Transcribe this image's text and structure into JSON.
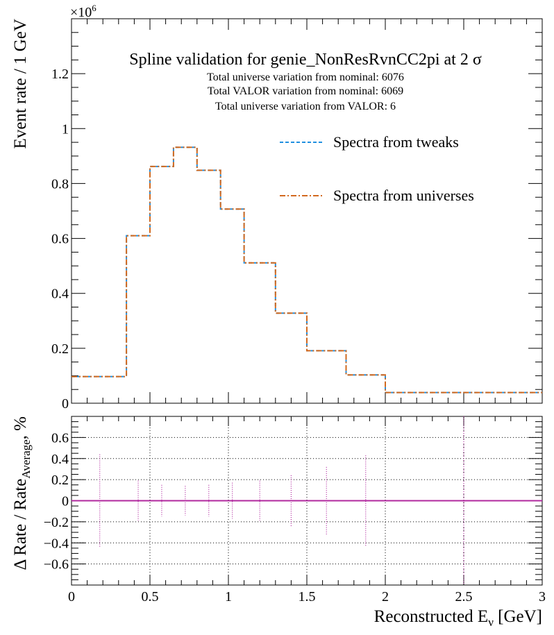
{
  "chart_data": [
    {
      "panel": "top",
      "type": "line",
      "step": true,
      "title": "Spline validation for genie_NonResRvnCC2pi at 2 σ",
      "title_main": "Spline validation for genie_NonResRvnCC2pi at 2 ",
      "title_sigma": "σ",
      "subtitles": [
        "Total universe variation from nominal: 6076",
        "Total VALOR variation from nominal: 6069",
        "Total universe variation from VALOR: 6"
      ],
      "ylabel": "Event rate / 1 GeV",
      "y_multiplier_base": "×10",
      "y_multiplier_exp": "6",
      "xlim": [
        0,
        3
      ],
      "ylim": [
        0,
        1.4
      ],
      "yticks": [
        0,
        0.2,
        0.4,
        0.6,
        0.8,
        1,
        1.2
      ],
      "ytick_labels": [
        "0",
        "0.2",
        "0.4",
        "0.6",
        "0.8",
        "1",
        "1.2"
      ],
      "bin_edges": [
        0,
        0.35,
        0.5,
        0.65,
        0.8,
        0.95,
        1.1,
        1.3,
        1.5,
        1.75,
        2.0,
        3.0
      ],
      "legend": [
        "Spectra from tweaks",
        "Spectra from universes"
      ],
      "series": [
        {
          "name": "Spectra from tweaks",
          "color": "#1f8fe0",
          "style": "dashed",
          "values": [
            0.097,
            0.61,
            0.862,
            0.932,
            0.848,
            0.707,
            0.511,
            0.328,
            0.191,
            0.103,
            0.039
          ]
        },
        {
          "name": "Spectra from universes",
          "color": "#d2691e",
          "style": "dash-dot",
          "values": [
            0.097,
            0.61,
            0.862,
            0.932,
            0.848,
            0.707,
            0.511,
            0.328,
            0.191,
            0.103,
            0.039
          ]
        }
      ]
    },
    {
      "panel": "bottom",
      "type": "scatter",
      "ylabel_main": "Δ Rate / Rate",
      "ylabel_sub": "Average",
      "ylabel_unit": ", %",
      "xlabel_main": "Reconstructed E",
      "xlabel_sub": "ν",
      "xlabel_unit": " [GeV]",
      "xlim": [
        0,
        3
      ],
      "ylim": [
        -0.8,
        0.8
      ],
      "grid": true,
      "xticks": [
        0,
        0.5,
        1,
        1.5,
        2,
        2.5,
        3
      ],
      "xtick_labels": [
        "0",
        "0.5",
        "1",
        "1.5",
        "2",
        "2.5",
        "3"
      ],
      "yticks": [
        -0.6,
        -0.4,
        -0.2,
        0,
        0.2,
        0.4,
        0.6
      ],
      "ytick_labels": [
        "−0.6",
        "−0.4",
        "−0.2",
        "0",
        "0.2",
        "0.4",
        "0.6"
      ],
      "line_color": "#b0279e",
      "points": [
        {
          "x": 0.18,
          "y": 0,
          "err": 0.44
        },
        {
          "x": 0.425,
          "y": 0,
          "err": 0.19
        },
        {
          "x": 0.575,
          "y": 0,
          "err": 0.15
        },
        {
          "x": 0.725,
          "y": 0,
          "err": 0.14
        },
        {
          "x": 0.875,
          "y": 0,
          "err": 0.15
        },
        {
          "x": 1.025,
          "y": 0,
          "err": 0.17
        },
        {
          "x": 1.2,
          "y": 0,
          "err": 0.19
        },
        {
          "x": 1.4,
          "y": 0,
          "err": 0.24
        },
        {
          "x": 1.625,
          "y": 0,
          "err": 0.32
        },
        {
          "x": 1.875,
          "y": 0,
          "err": 0.43
        },
        {
          "x": 2.5,
          "y": 0,
          "err": 0.8
        }
      ]
    }
  ]
}
